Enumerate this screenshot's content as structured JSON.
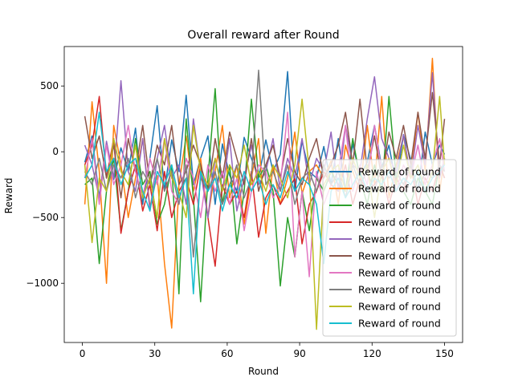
{
  "chart_data": {
    "type": "line",
    "title": "Overall reward after Round",
    "xlabel": "Round",
    "ylabel": "Reward",
    "xlim": [
      -7.5,
      157.5
    ],
    "ylim": [
      -1450,
      800
    ],
    "xticks": [
      0,
      30,
      60,
      90,
      120,
      150
    ],
    "yticks": [
      -1000,
      -500,
      0,
      500
    ],
    "ytick_labels": [
      "−1000",
      "−500",
      "0",
      "500"
    ],
    "grid": false,
    "legend_position": "lower right",
    "x": [
      1,
      4,
      7,
      10,
      13,
      16,
      19,
      22,
      25,
      28,
      31,
      34,
      37,
      40,
      43,
      46,
      49,
      52,
      55,
      58,
      61,
      64,
      67,
      70,
      73,
      76,
      79,
      82,
      85,
      88,
      91,
      94,
      97,
      100,
      103,
      106,
      109,
      112,
      115,
      118,
      121,
      124,
      127,
      130,
      133,
      136,
      139,
      142,
      145,
      148,
      150
    ],
    "series": [
      {
        "name": "Reward of round",
        "color": "#1f77b4",
        "values": [
          -80,
          120,
          -350,
          60,
          -210,
          30,
          -150,
          180,
          -400,
          -50,
          350,
          -300,
          90,
          -150,
          430,
          -250,
          -50,
          120,
          -400,
          60,
          -180,
          -300,
          110,
          -50,
          -200,
          90,
          -150,
          -20,
          610,
          -300,
          80,
          -150,
          -200,
          40,
          -250,
          100,
          -300,
          60,
          -180,
          -80,
          200,
          -120,
          50,
          -250,
          130,
          -60,
          -300,
          150,
          -100,
          50,
          -20
        ]
      },
      {
        "name": "Reward of round",
        "color": "#ff7f0e",
        "values": [
          -400,
          380,
          -150,
          -1000,
          200,
          -100,
          -500,
          -200,
          100,
          -420,
          -180,
          -850,
          -1340,
          -250,
          120,
          -300,
          -50,
          -500,
          -150,
          200,
          -350,
          -100,
          -550,
          -200,
          100,
          -620,
          -100,
          -400,
          -200,
          150,
          -320,
          -150,
          -100,
          -200,
          -70,
          -400,
          50,
          -150,
          -300,
          200,
          -250,
          420,
          -350,
          -100,
          120,
          -200,
          300,
          -150,
          710,
          -300,
          -50
        ]
      },
      {
        "name": "Reward of round",
        "color": "#2ca02c",
        "values": [
          -250,
          -200,
          -850,
          -300,
          -50,
          -600,
          -300,
          100,
          -250,
          -150,
          -550,
          -400,
          -100,
          -1080,
          250,
          -350,
          -1140,
          -200,
          480,
          -400,
          -100,
          -700,
          -300,
          400,
          -200,
          -100,
          -300,
          -1020,
          -500,
          -800,
          -300,
          -600,
          -200,
          -300,
          -150,
          -250,
          -300,
          100,
          -200,
          -400,
          -100,
          -300,
          420,
          -200,
          -300,
          -400,
          -200,
          -300,
          -400,
          -100,
          -200
        ]
      },
      {
        "name": "Reward of round",
        "color": "#d62728",
        "values": [
          -100,
          50,
          420,
          -200,
          100,
          -620,
          -300,
          -100,
          -450,
          -250,
          -600,
          -150,
          -500,
          -300,
          -200,
          -400,
          -100,
          -500,
          -870,
          -250,
          -400,
          -300,
          -500,
          -150,
          -650,
          -350,
          -250,
          -400,
          -300,
          -200,
          -700,
          -400,
          -300,
          -150,
          -250,
          -300,
          -100,
          -400,
          -200,
          -300,
          -250,
          -150,
          -400,
          -200,
          -300,
          -100,
          -400,
          -200,
          -300,
          -100,
          -200
        ]
      },
      {
        "name": "Reward of round",
        "color": "#9467bd",
        "values": [
          50,
          -100,
          -350,
          80,
          -200,
          540,
          -150,
          -300,
          100,
          -450,
          -50,
          200,
          -200,
          -100,
          -400,
          250,
          -150,
          -500,
          -50,
          -300,
          100,
          -450,
          -200,
          50,
          -250,
          -150,
          100,
          -300,
          -50,
          -200,
          100,
          -250,
          -50,
          -150,
          150,
          -300,
          200,
          -100,
          -150,
          250,
          570,
          100,
          -50,
          -150,
          130,
          -200,
          200,
          -100,
          600,
          -200,
          -50
        ]
      },
      {
        "name": "Reward of round",
        "color": "#8c564b",
        "values": [
          270,
          -50,
          120,
          -200,
          50,
          -350,
          100,
          -150,
          200,
          -250,
          50,
          -100,
          200,
          -250,
          -150,
          50,
          -100,
          -300,
          100,
          -200,
          150,
          -50,
          -250,
          100,
          -300,
          -100,
          50,
          -200,
          100,
          -150,
          -250,
          -50,
          100,
          -200,
          -100,
          50,
          300,
          -100,
          400,
          -150,
          120,
          -200,
          150,
          -50,
          200,
          -100,
          300,
          -50,
          450,
          -100,
          250
        ]
      },
      {
        "name": "Reward of round",
        "color": "#e377c2",
        "values": [
          -200,
          100,
          -400,
          50,
          -250,
          -100,
          200,
          -150,
          -350,
          -50,
          -250,
          100,
          -300,
          -400,
          -50,
          -200,
          -500,
          -100,
          -300,
          -150,
          -400,
          -200,
          -600,
          -300,
          -100,
          -150,
          -350,
          -250,
          300,
          -800,
          -300,
          -950,
          -150,
          -400,
          -250,
          -150,
          200,
          -300,
          -100,
          -250,
          200,
          -150,
          -50,
          -300,
          -100,
          -200,
          50,
          -250,
          -100,
          100,
          -150
        ]
      },
      {
        "name": "Reward of round",
        "color": "#7f7f7f",
        "values": [
          -150,
          -250,
          -50,
          -300,
          -100,
          -200,
          -50,
          -350,
          -150,
          -250,
          -50,
          -300,
          -150,
          -400,
          -100,
          -800,
          -200,
          -300,
          -150,
          -400,
          -250,
          -100,
          -350,
          -200,
          620,
          -250,
          -150,
          -300,
          -100,
          -400,
          -200,
          -150,
          -300,
          -100,
          -250,
          -150,
          -350,
          -100,
          -250,
          -150,
          -300,
          -100,
          -200,
          -150,
          -250,
          -100,
          -300,
          -150,
          -200,
          -100,
          -150
        ]
      },
      {
        "name": "Reward of round",
        "color": "#bcbd22",
        "values": [
          -100,
          -690,
          -200,
          -300,
          100,
          -150,
          -250,
          50,
          -350,
          -200,
          -500,
          100,
          -200,
          -300,
          -500,
          200,
          -150,
          -250,
          -50,
          -300,
          -100,
          -200,
          50,
          -250,
          -150,
          -300,
          -100,
          -200,
          -350,
          -100,
          400,
          -150,
          -1350,
          -250,
          -150,
          -100,
          -300,
          -50,
          -200,
          -100,
          -500,
          -150,
          -50,
          -250,
          50,
          -200,
          -100,
          -300,
          -150,
          420,
          -100
        ]
      },
      {
        "name": "Reward of round",
        "color": "#17becf",
        "values": [
          -200,
          -100,
          300,
          -150,
          -50,
          -250,
          -100,
          -50,
          -300,
          -450,
          -150,
          -250,
          -100,
          -350,
          -200,
          -1080,
          -150,
          -300,
          -200,
          -450,
          -250,
          -350,
          -150,
          -300,
          -200,
          -400,
          -250,
          -350,
          -150,
          -300,
          -200,
          -250,
          -400,
          -850,
          -300,
          -200,
          -350,
          -250,
          -150,
          -300,
          -200,
          -250,
          -150,
          -300,
          -200,
          -250,
          -150,
          -300,
          -200,
          -150,
          -100
        ]
      }
    ]
  }
}
